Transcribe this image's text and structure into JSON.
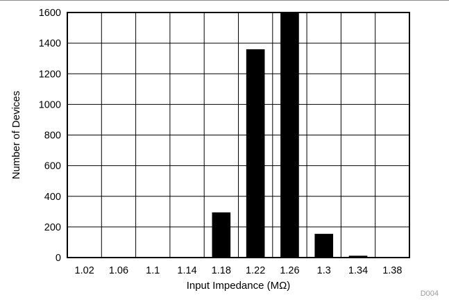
{
  "chart_data": {
    "type": "bar",
    "categories": [
      "1.02",
      "1.06",
      "1.1",
      "1.14",
      "1.18",
      "1.22",
      "1.26",
      "1.3",
      "1.34",
      "1.38"
    ],
    "values": [
      0,
      0,
      0,
      0,
      295,
      1360,
      1600,
      155,
      12,
      0
    ],
    "title": "",
    "xlabel": "Input Impedance (MΩ)",
    "ylabel": "Number of Devices",
    "ylim": [
      0,
      1600
    ],
    "yticks": [
      0,
      200,
      400,
      600,
      800,
      1000,
      1200,
      1400,
      1600
    ],
    "grid": true,
    "legend": "none",
    "bar_color": "#000000",
    "figure_code": "D004"
  }
}
